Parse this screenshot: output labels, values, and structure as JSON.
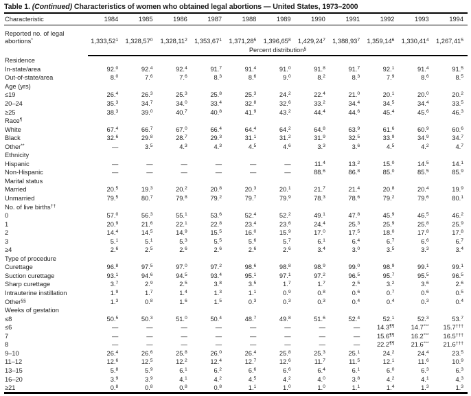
{
  "title": {
    "prefix": "Table 1.",
    "continued": "(Continued)",
    "rest": "Characteristics of women who obtained legal abortions — United States, 1973–2000"
  },
  "table": {
    "char_header": "Characteristic",
    "years": [
      "1984",
      "1985",
      "1986",
      "1987",
      "1988",
      "1989",
      "1990",
      "1991",
      "1992",
      "1993",
      "1994"
    ],
    "reported_row": {
      "label": "Reported no. of legal abortions",
      "sup": "*",
      "values": [
        "1,333,521",
        "1,328,570",
        "1,328,112",
        "1,353,671",
        "1,371,285",
        "1,396,658",
        "1,429,247",
        "1,388,937",
        "1,359,146",
        "1,330,414",
        "1,267,415"
      ]
    },
    "band": {
      "label": "Percent distribution",
      "sup": "§"
    },
    "rows": [
      {
        "label": "Residence",
        "type": "group",
        "indent": 0
      },
      {
        "label": "In-state/area",
        "indent": 1,
        "values": [
          "92.0",
          "92.4",
          "92.4",
          "91.7",
          "91.4",
          "91.0",
          "91.8",
          "91.7",
          "92.1",
          "91.4",
          "91.5"
        ]
      },
      {
        "label": "Out-of-state/area",
        "indent": 1,
        "values": [
          "8.0",
          "7.6",
          "7.6",
          "8.3",
          "8.6",
          "9.0",
          "8.2",
          "8.3",
          "7.9",
          "8.6",
          "8.5"
        ]
      },
      {
        "label": "Age (yrs)",
        "type": "group",
        "indent": 0
      },
      {
        "label": "≤19",
        "indent": 2,
        "values": [
          "26.4",
          "26.3",
          "25.3",
          "25.8",
          "25.3",
          "24.2",
          "22.4",
          "21.0",
          "20.1",
          "20.0",
          "20.2"
        ]
      },
      {
        "label": "20–24",
        "indent": 1,
        "values": [
          "35.3",
          "34.7",
          "34.0",
          "33.4",
          "32.8",
          "32.6",
          "33.2",
          "34.4",
          "34.5",
          "34.4",
          "33.5"
        ]
      },
      {
        "label": "≥25",
        "indent": 2,
        "values": [
          "38.3",
          "39.0",
          "40.7",
          "40.8",
          "41.9",
          "43.2",
          "44.4",
          "44.6",
          "45.4",
          "45.6",
          "46.3"
        ]
      },
      {
        "label": "Race",
        "sup": "¶",
        "type": "group",
        "indent": 0
      },
      {
        "label": "White",
        "indent": 1,
        "values": [
          "67.4",
          "66.7",
          "67.0",
          "66.4",
          "64.4",
          "64.2",
          "64.8",
          "63.9",
          "61.6",
          "60.9",
          "60.6"
        ]
      },
      {
        "label": "Black",
        "indent": 1,
        "values": [
          "32.6",
          "29.8",
          "28.7",
          "29.3",
          "31.1",
          "31.2",
          "31.9",
          "32.5",
          "33.9",
          "34.9",
          "34.7"
        ]
      },
      {
        "label": "Other",
        "sup": "**",
        "indent": 1,
        "values": [
          "—",
          "3.5",
          "4.3",
          "4.3",
          "4.5",
          "4.6",
          "3.3",
          "3.6",
          "4.5",
          "4.2",
          "4.7"
        ]
      },
      {
        "label": "Ethnicity",
        "type": "group",
        "indent": 0
      },
      {
        "label": "Hispanic",
        "indent": 1,
        "values": [
          "—",
          "—",
          "—",
          "—",
          "—",
          "—",
          "11.4",
          "13.2",
          "15.0",
          "14.5",
          "14.1"
        ]
      },
      {
        "label": "Non-Hispanic",
        "indent": 1,
        "values": [
          "—",
          "—",
          "—",
          "—",
          "—",
          "—",
          "88.6",
          "86.8",
          "85.0",
          "85.5",
          "85.9"
        ]
      },
      {
        "label": "Marital status",
        "type": "group",
        "indent": 0
      },
      {
        "label": "Married",
        "indent": 1,
        "values": [
          "20.5",
          "19.3",
          "20.2",
          "20.8",
          "20.3",
          "20.1",
          "21.7",
          "21.4",
          "20.8",
          "20.4",
          "19.9"
        ]
      },
      {
        "label": "Unmarried",
        "indent": 1,
        "values": [
          "79.5",
          "80.7",
          "79.8",
          "79.2",
          "79.7",
          "79.9",
          "78.3",
          "78.6",
          "79.2",
          "79.6",
          "80.1"
        ]
      },
      {
        "label": "No. of live births",
        "sup": "††",
        "type": "group",
        "indent": 0
      },
      {
        "label": "0",
        "indent": 2,
        "values": [
          "57.0",
          "56.3",
          "55.1",
          "53.6",
          "52.4",
          "52.2",
          "49.1",
          "47.8",
          "45.9",
          "46.5",
          "46.2"
        ]
      },
      {
        "label": "1",
        "indent": 2,
        "values": [
          "20.9",
          "21.6",
          "22.1",
          "22.8",
          "23.4",
          "23.6",
          "24.4",
          "25.3",
          "25.9",
          "25.8",
          "25.9"
        ]
      },
      {
        "label": "2",
        "indent": 2,
        "values": [
          "14.4",
          "14.5",
          "14.9",
          "15.5",
          "16.0",
          "15.9",
          "17.0",
          "17.5",
          "18.0",
          "17.8",
          "17.8"
        ]
      },
      {
        "label": "3",
        "indent": 2,
        "values": [
          "5.1",
          "5.1",
          "5.3",
          "5.5",
          "5.6",
          "5.7",
          "6.1",
          "6.4",
          "6.7",
          "6.6",
          "6.7"
        ]
      },
      {
        "label": "≥4",
        "indent": 2,
        "values": [
          "2.6",
          "2.5",
          "2.6",
          "2.6",
          "2.6",
          "2.6",
          "3.4",
          "3.0",
          "3.5",
          "3.3",
          "3.4"
        ]
      },
      {
        "label": "Type of procedure",
        "type": "group",
        "indent": 0
      },
      {
        "label": "Curettage",
        "indent": 1,
        "values": [
          "96.8",
          "97.5",
          "97.0",
          "97.2",
          "98.6",
          "98.8",
          "98.9",
          "99.0",
          "98.9",
          "99.1",
          "99.1"
        ]
      },
      {
        "label": "Suction curettage",
        "indent": 2,
        "values": [
          "93.1",
          "94.6",
          "94.5",
          "93.4",
          "95.1",
          "97.1",
          "97.2",
          "96.5",
          "95.7",
          "95.5",
          "96.5"
        ]
      },
      {
        "label": "Sharp curettage",
        "indent": 2,
        "values": [
          "3.7",
          "2.9",
          "2.5",
          "3.8",
          "3.5",
          "1.7",
          "1.7",
          "2.5",
          "3.2",
          "3.6",
          "2.6"
        ]
      },
      {
        "label": "Intrauterine instillation",
        "indent": 1,
        "values": [
          "1.9",
          "1.7",
          "1.4",
          "1.3",
          "1.1",
          "0.9",
          "0.8",
          "0.6",
          "0.7",
          "0.6",
          "0.5"
        ]
      },
      {
        "label": "Other",
        "sup": "§§",
        "indent": 1,
        "values": [
          "1.3",
          "0.8",
          "1.6",
          "1.5",
          "0.3",
          "0.3",
          "0.3",
          "0.4",
          "0.4",
          "0.3",
          "0.4"
        ]
      },
      {
        "label": "Weeks of gestation",
        "type": "group",
        "indent": 0
      },
      {
        "label": "≤8",
        "indent": 2,
        "values": [
          "50.5",
          "50.3",
          "51.0",
          "50.4",
          "48.7",
          "49.8",
          "51.6",
          "52.4",
          "52.1",
          "52.3",
          "53.7"
        ]
      },
      {
        "label": "≤6",
        "indent": 2,
        "values": [
          "—",
          "—",
          "—",
          "—",
          "—",
          "—",
          "—",
          "—",
          "14.3¶¶",
          "14.7 ***",
          "15.7†††"
        ]
      },
      {
        "label": "7",
        "indent": 2,
        "values": [
          "—",
          "—",
          "—",
          "—",
          "—",
          "—",
          "—",
          "—",
          "15.6¶¶",
          "16.2 ***",
          "16.5†††"
        ]
      },
      {
        "label": "8",
        "indent": 2,
        "values": [
          "—",
          "—",
          "—",
          "—",
          "—",
          "—",
          "—",
          "—",
          "22.2¶¶",
          "21.6 ***",
          "21.6†††"
        ]
      },
      {
        "label": "9–10",
        "indent": 1,
        "values": [
          "26.4",
          "26.6",
          "25.8",
          "26.0",
          "26.4",
          "25.8",
          "25.3",
          "25.1",
          "24.2",
          "24.4",
          "23.5"
        ]
      },
      {
        "label": "11–12",
        "indent": 1,
        "values": [
          "12.6",
          "12.5",
          "12.2",
          "12.4",
          "12.7",
          "12.6",
          "11.7",
          "11.5",
          "12.1",
          "11.6",
          "10.9"
        ]
      },
      {
        "label": "13–15",
        "indent": 1,
        "values": [
          "5.8",
          "5.9",
          "6.1",
          "6.2",
          "6.6",
          "6.6",
          "6.4",
          "6.1",
          "6.0",
          "6.3",
          "6.3"
        ]
      },
      {
        "label": "16–20",
        "indent": 1,
        "values": [
          "3.9",
          "3.9",
          "4.1",
          "4.2",
          "4.5",
          "4.2",
          "4.0",
          "3.8",
          "4.2",
          "4.1",
          "4.3"
        ]
      },
      {
        "label": "≥21",
        "indent": 2,
        "values": [
          "0.8",
          "0.8",
          "0.8",
          "0.8",
          "1.1",
          "1.0",
          "1.0",
          "1.1",
          "1.4",
          "1.3",
          "1.3"
        ]
      }
    ]
  }
}
